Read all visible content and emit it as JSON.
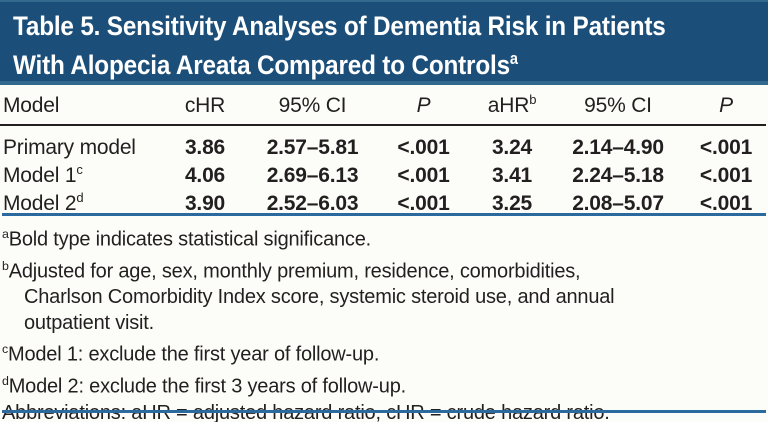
{
  "colors": {
    "page_bg": "#fcfdf9",
    "banner_bg": "#1b4e78",
    "banner_edge": "#33688f",
    "title_text": "#ffffff",
    "text": "#231f20",
    "rule_black": "#231f20",
    "rule_blue": "#2b6a9e"
  },
  "title": {
    "line1": "Table 5. Sensitivity Analyses of Dementia Risk in Patients",
    "line2": "With Alopecia Areata Compared to Controls",
    "superscript": "a"
  },
  "table": {
    "headers": [
      {
        "label": "Model",
        "sup": ""
      },
      {
        "label": "cHR",
        "sup": ""
      },
      {
        "label": "95% CI",
        "sup": ""
      },
      {
        "label": "P",
        "sup": ""
      },
      {
        "label": "aHR",
        "sup": "b"
      },
      {
        "label": "95% CI",
        "sup": ""
      },
      {
        "label": "P",
        "sup": ""
      }
    ],
    "rows": [
      {
        "model": "Primary model",
        "sup": "",
        "values": [
          "3.86",
          "2.57–5.81",
          "<.001",
          "3.24",
          "2.14–4.90",
          "<.001"
        ]
      },
      {
        "model": "Model 1",
        "sup": "c",
        "values": [
          "4.06",
          "2.69–6.13",
          "<.001",
          "3.41",
          "2.24–5.18",
          "<.001"
        ]
      },
      {
        "model": "Model 2",
        "sup": "d",
        "values": [
          "3.90",
          "2.52–6.03",
          "<.001",
          "3.25",
          "2.08–5.07",
          "<.001"
        ]
      }
    ]
  },
  "footnotes": [
    {
      "sup": "a",
      "lines": [
        "Bold type indicates statistical significance."
      ]
    },
    {
      "sup": "b",
      "lines": [
        "Adjusted for age, sex, monthly premium, residence, comorbidities,",
        "Charlson Comorbidity Index score, systemic steroid use, and annual",
        "outpatient visit."
      ]
    },
    {
      "sup": "c",
      "lines": [
        "Model 1: exclude the first year of follow-up."
      ]
    },
    {
      "sup": "d",
      "lines": [
        "Model 2: exclude the first 3 years of follow-up."
      ]
    },
    {
      "sup": "",
      "lines": [
        "Abbreviations: aHR = adjusted hazard ratio, cHR = crude hazard ratio."
      ]
    }
  ]
}
